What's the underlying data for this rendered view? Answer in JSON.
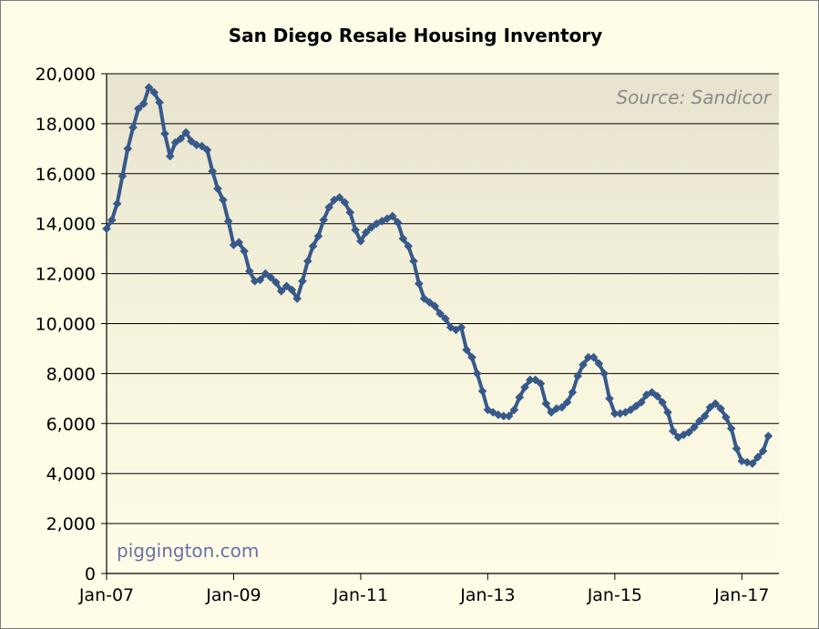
{
  "chart_data": {
    "type": "line",
    "title": "San Diego Resale Housing Inventory",
    "xlabel": "",
    "ylabel": "",
    "ylim": [
      0,
      20000
    ],
    "yticks": [
      0,
      2000,
      4000,
      6000,
      8000,
      10000,
      12000,
      14000,
      16000,
      18000,
      20000
    ],
    "ytick_labels": [
      "0",
      "2,000",
      "4,000",
      "6,000",
      "8,000",
      "10,000",
      "12,000",
      "14,000",
      "16,000",
      "18,000",
      "20,000"
    ],
    "xticks": [
      "2007-01",
      "2009-01",
      "2011-01",
      "2013-01",
      "2015-01",
      "2017-01"
    ],
    "xtick_labels": [
      "Jan-07",
      "Jan-09",
      "Jan-11",
      "Jan-13",
      "Jan-15",
      "Jan-17"
    ],
    "xlim": [
      "2007-01",
      "2017-08"
    ],
    "grid": "horizontal",
    "annotations": {
      "source": "Source: Sandicor",
      "watermark": "piggington.com"
    },
    "series": [
      {
        "color": "#37598a",
        "marker": "diamond",
        "points": [
          [
            "2007-01",
            13800
          ],
          [
            "2007-02",
            14150
          ],
          [
            "2007-03",
            14800
          ],
          [
            "2007-04",
            15900
          ],
          [
            "2007-05",
            17000
          ],
          [
            "2007-06",
            17850
          ],
          [
            "2007-07",
            18600
          ],
          [
            "2007-08",
            18800
          ],
          [
            "2007-09",
            19450
          ],
          [
            "2007-10",
            19250
          ],
          [
            "2007-11",
            18850
          ],
          [
            "2007-12",
            17600
          ],
          [
            "2008-01",
            16700
          ],
          [
            "2008-02",
            17250
          ],
          [
            "2008-03",
            17400
          ],
          [
            "2008-04",
            17650
          ],
          [
            "2008-05",
            17300
          ],
          [
            "2008-06",
            17150
          ],
          [
            "2008-07",
            17100
          ],
          [
            "2008-08",
            16950
          ],
          [
            "2008-09",
            16100
          ],
          [
            "2008-10",
            15400
          ],
          [
            "2008-11",
            14950
          ],
          [
            "2008-12",
            14100
          ],
          [
            "2009-01",
            13150
          ],
          [
            "2009-02",
            13250
          ],
          [
            "2009-03",
            12900
          ],
          [
            "2009-04",
            12100
          ],
          [
            "2009-05",
            11700
          ],
          [
            "2009-06",
            11750
          ],
          [
            "2009-07",
            12000
          ],
          [
            "2009-08",
            11850
          ],
          [
            "2009-09",
            11650
          ],
          [
            "2009-10",
            11300
          ],
          [
            "2009-11",
            11500
          ],
          [
            "2009-12",
            11350
          ],
          [
            "2010-01",
            11000
          ],
          [
            "2010-02",
            11700
          ],
          [
            "2010-03",
            12500
          ],
          [
            "2010-04",
            13100
          ],
          [
            "2010-05",
            13500
          ],
          [
            "2010-06",
            14150
          ],
          [
            "2010-07",
            14650
          ],
          [
            "2010-08",
            14950
          ],
          [
            "2010-09",
            15050
          ],
          [
            "2010-10",
            14850
          ],
          [
            "2010-11",
            14450
          ],
          [
            "2010-12",
            13750
          ],
          [
            "2011-01",
            13300
          ],
          [
            "2011-02",
            13650
          ],
          [
            "2011-03",
            13850
          ],
          [
            "2011-04",
            14000
          ],
          [
            "2011-05",
            14100
          ],
          [
            "2011-06",
            14200
          ],
          [
            "2011-07",
            14300
          ],
          [
            "2011-08",
            14050
          ],
          [
            "2011-09",
            13400
          ],
          [
            "2011-10",
            13100
          ],
          [
            "2011-11",
            12500
          ],
          [
            "2011-12",
            11600
          ],
          [
            "2012-01",
            11000
          ],
          [
            "2012-02",
            10850
          ],
          [
            "2012-03",
            10700
          ],
          [
            "2012-04",
            10400
          ],
          [
            "2012-05",
            10200
          ],
          [
            "2012-06",
            9850
          ],
          [
            "2012-07",
            9750
          ],
          [
            "2012-08",
            9850
          ],
          [
            "2012-09",
            8950
          ],
          [
            "2012-10",
            8650
          ],
          [
            "2012-11",
            8000
          ],
          [
            "2012-12",
            7300
          ],
          [
            "2013-01",
            6550
          ],
          [
            "2013-02",
            6450
          ],
          [
            "2013-03",
            6350
          ],
          [
            "2013-04",
            6300
          ],
          [
            "2013-05",
            6300
          ],
          [
            "2013-06",
            6550
          ],
          [
            "2013-07",
            7050
          ],
          [
            "2013-08",
            7450
          ],
          [
            "2013-09",
            7750
          ],
          [
            "2013-10",
            7750
          ],
          [
            "2013-11",
            7600
          ],
          [
            "2013-12",
            6800
          ],
          [
            "2014-01",
            6450
          ],
          [
            "2014-02",
            6600
          ],
          [
            "2014-03",
            6650
          ],
          [
            "2014-04",
            6850
          ],
          [
            "2014-05",
            7250
          ],
          [
            "2014-06",
            7900
          ],
          [
            "2014-07",
            8350
          ],
          [
            "2014-08",
            8650
          ],
          [
            "2014-09",
            8650
          ],
          [
            "2014-10",
            8400
          ],
          [
            "2014-11",
            8000
          ],
          [
            "2014-12",
            7000
          ],
          [
            "2015-01",
            6400
          ],
          [
            "2015-02",
            6400
          ],
          [
            "2015-03",
            6450
          ],
          [
            "2015-04",
            6550
          ],
          [
            "2015-05",
            6700
          ],
          [
            "2015-06",
            6850
          ],
          [
            "2015-07",
            7150
          ],
          [
            "2015-08",
            7250
          ],
          [
            "2015-09",
            7100
          ],
          [
            "2015-10",
            6850
          ],
          [
            "2015-11",
            6450
          ],
          [
            "2015-12",
            5700
          ],
          [
            "2016-01",
            5450
          ],
          [
            "2016-02",
            5550
          ],
          [
            "2016-03",
            5650
          ],
          [
            "2016-04",
            5850
          ],
          [
            "2016-05",
            6100
          ],
          [
            "2016-06",
            6300
          ],
          [
            "2016-07",
            6650
          ],
          [
            "2016-08",
            6800
          ],
          [
            "2016-09",
            6600
          ],
          [
            "2016-10",
            6250
          ],
          [
            "2016-11",
            5800
          ],
          [
            "2016-12",
            5000
          ],
          [
            "2017-01",
            4500
          ],
          [
            "2017-02",
            4450
          ],
          [
            "2017-03",
            4400
          ],
          [
            "2017-04",
            4650
          ],
          [
            "2017-05",
            4900
          ],
          [
            "2017-06",
            5500
          ]
        ]
      }
    ]
  }
}
